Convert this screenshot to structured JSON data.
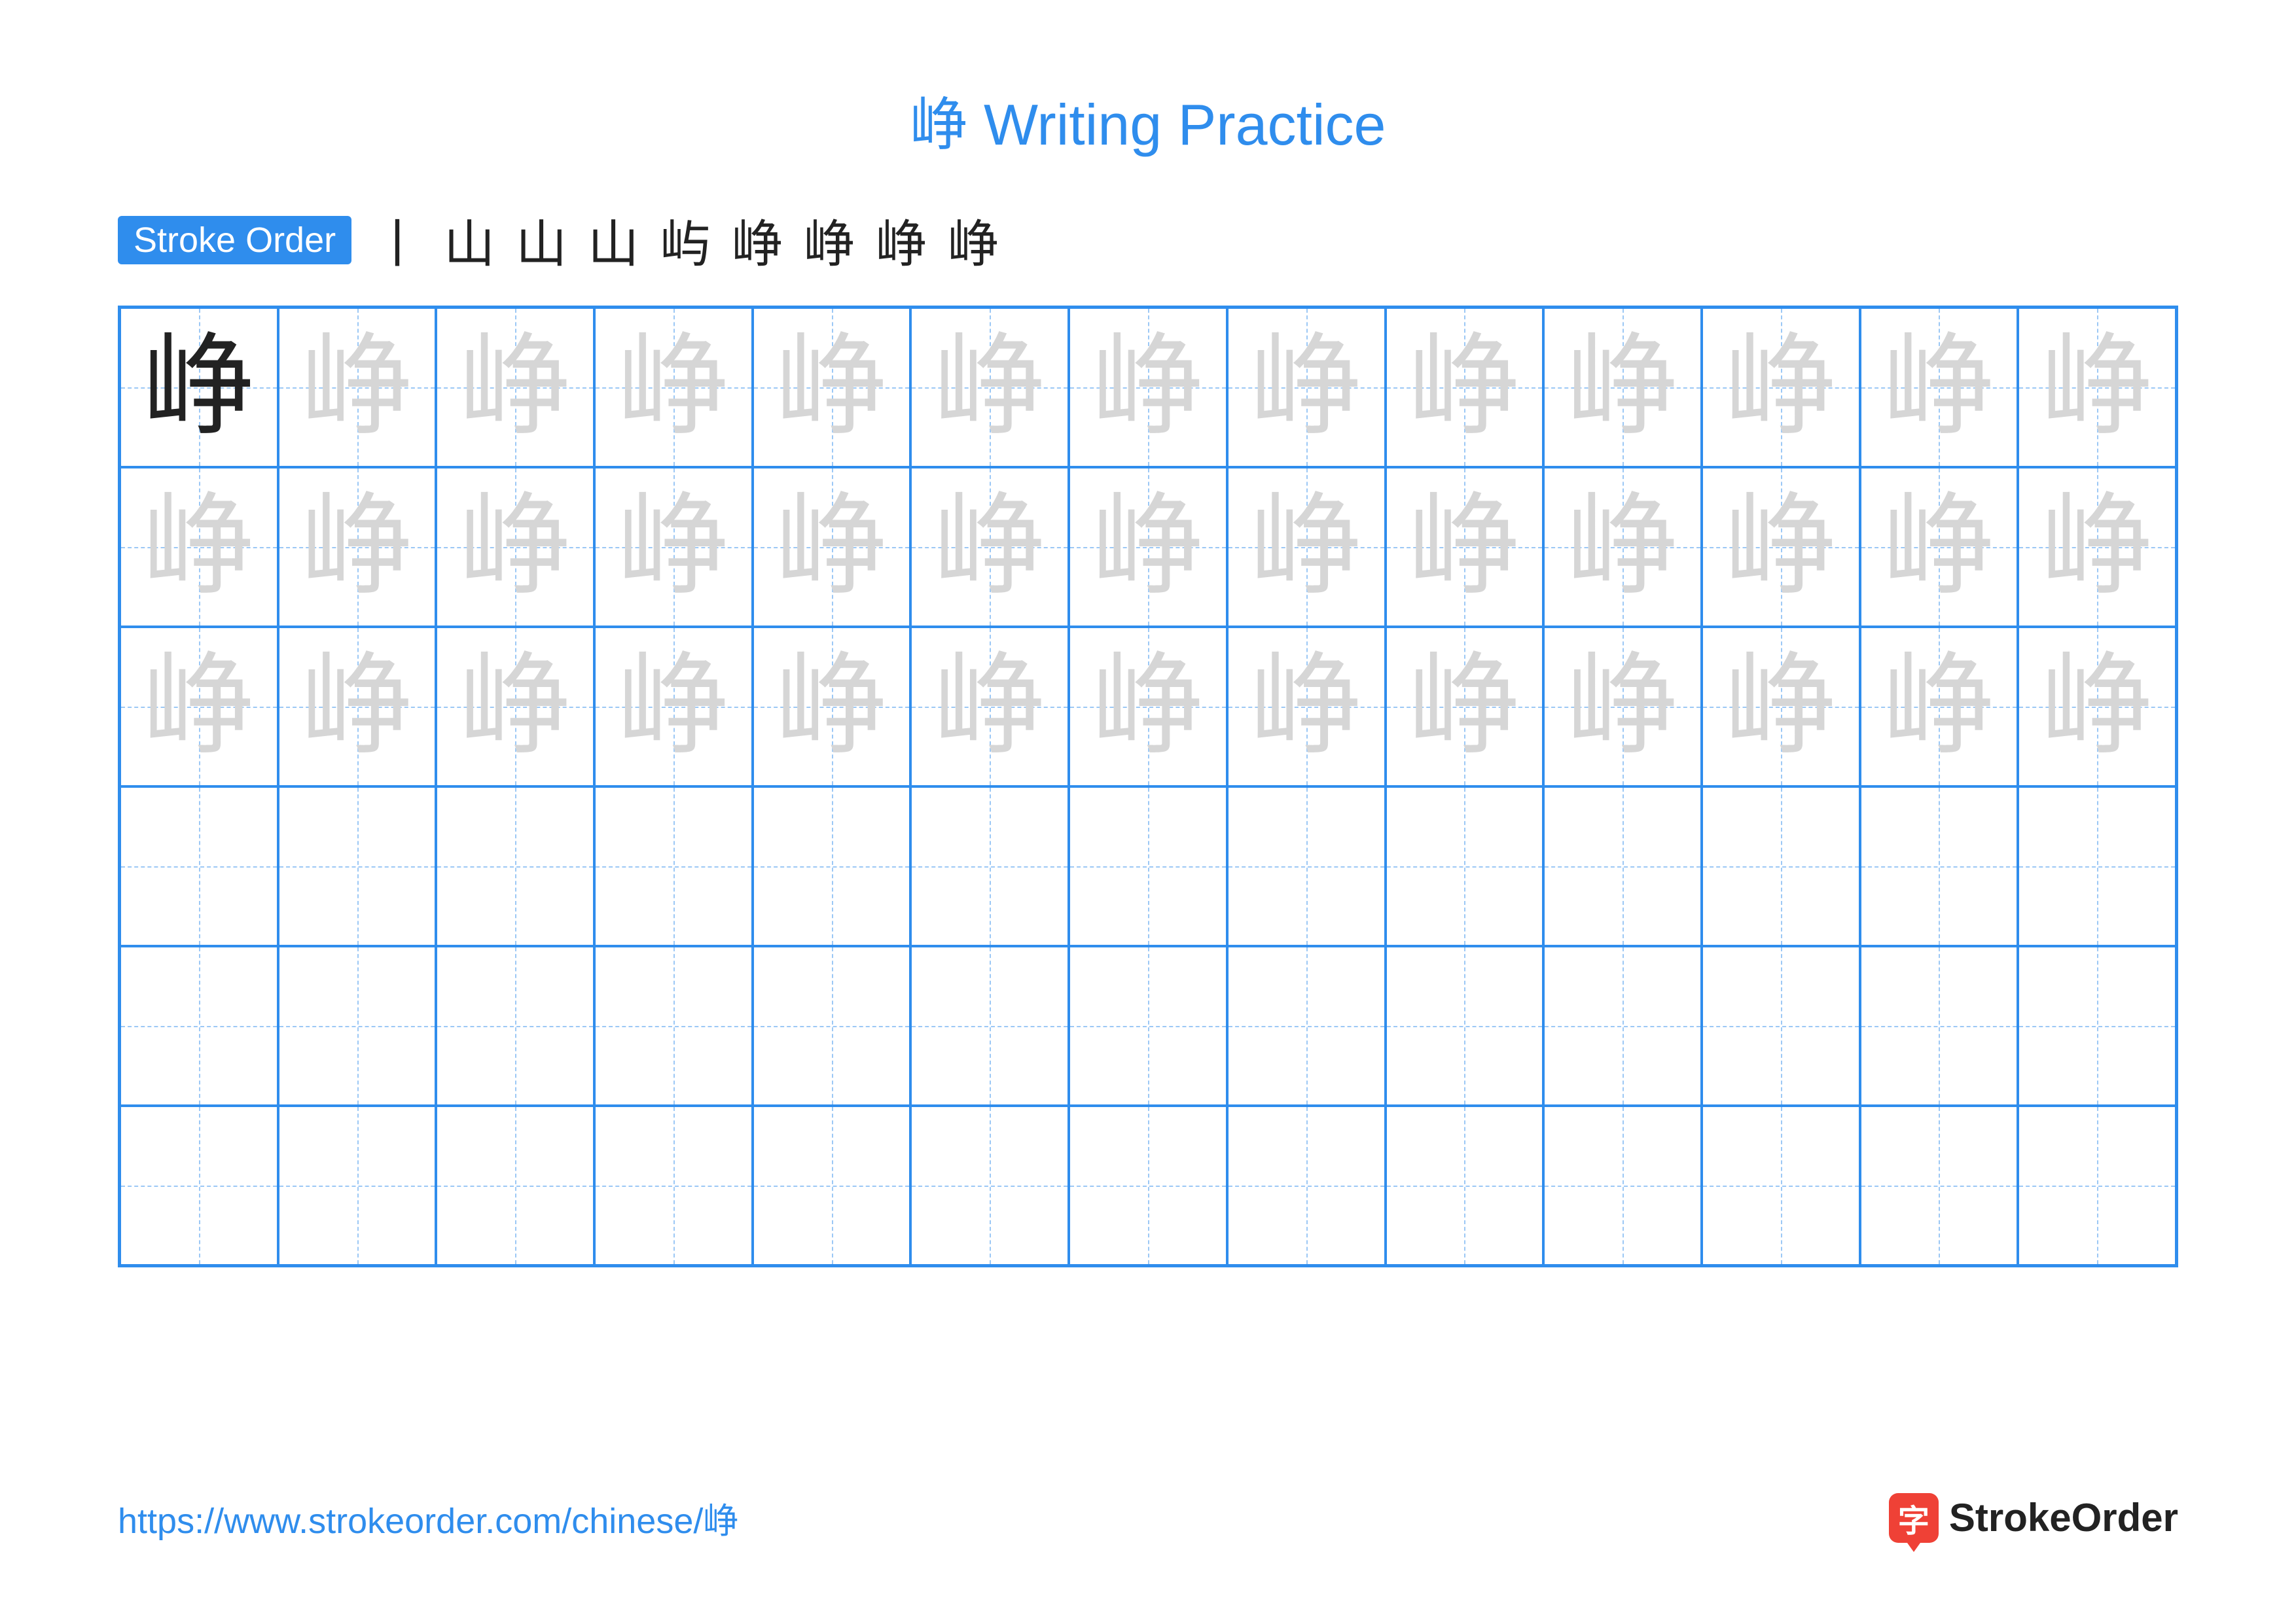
{
  "title_char": "峥",
  "title_suffix": " Writing Practice",
  "title_color": "#2f8ded",
  "stroke_label": "Stroke Order",
  "stroke_label_bg": "#2f8ded",
  "stroke_steps": [
    "丨",
    "山",
    "山",
    "山",
    "屿",
    "峥",
    "峥",
    "峥",
    "峥"
  ],
  "stroke_step_color": "#222222",
  "grid": {
    "cols": 13,
    "rows": 6,
    "border_color": "#2f8ded",
    "guide_color": "#9cc8f5",
    "solid_char": "峥",
    "solid_color": "#222222",
    "trace_char": "峥",
    "trace_color": "#d6d6d6",
    "trace_rows": 3
  },
  "footer_url": "https://www.strokeorder.com/chinese/峥",
  "footer_url_color": "#2f8ded",
  "logo_text": "StrokeOrder",
  "logo_text_color": "#222222",
  "logo_icon_bg": "#ef4136",
  "logo_icon_char": "字"
}
